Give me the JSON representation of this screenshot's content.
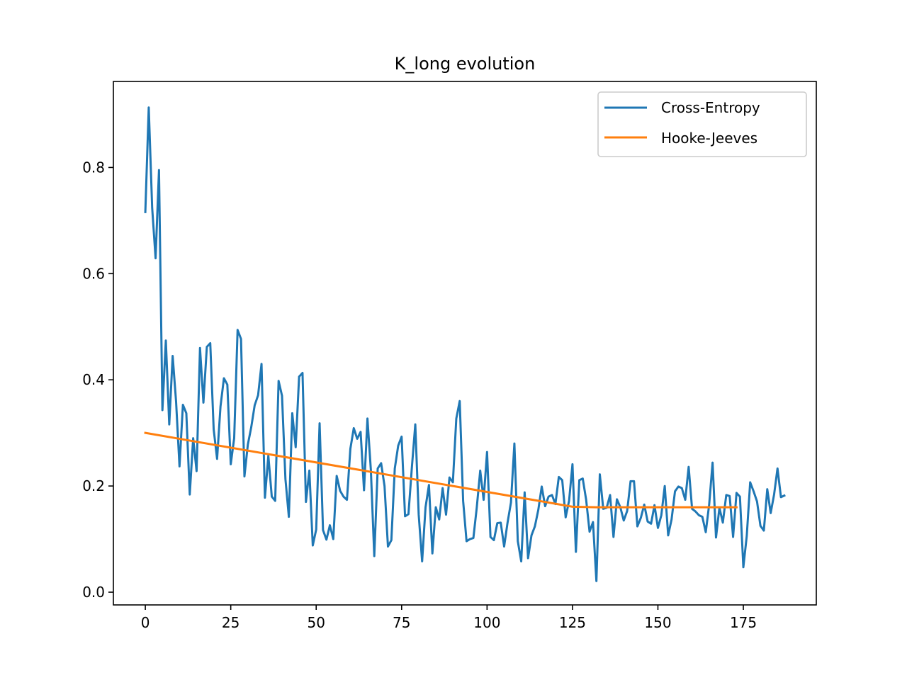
{
  "chart_data": {
    "type": "line",
    "title": "K_long evolution",
    "xlabel": "",
    "ylabel": "",
    "xlim": [
      -9.35,
      196.35
    ],
    "ylim": [
      -0.024,
      0.962
    ],
    "x_ticks": [
      0,
      25,
      50,
      75,
      100,
      125,
      150,
      175
    ],
    "x_tick_labels": [
      "0",
      "25",
      "50",
      "75",
      "100",
      "125",
      "150",
      "175"
    ],
    "y_ticks": [
      0.0,
      0.2,
      0.4,
      0.6,
      0.8
    ],
    "y_tick_labels": [
      "0.0",
      "0.2",
      "0.4",
      "0.6",
      "0.8"
    ],
    "grid": false,
    "legend_position": "top-right",
    "colors": {
      "cross_entropy": "#1f77b4",
      "hooke_jeeves": "#ff7f0e"
    },
    "series": [
      {
        "name": "Cross-Entropy",
        "values": [
          0.716,
          0.913,
          0.724,
          0.629,
          0.795,
          0.343,
          0.474,
          0.316,
          0.445,
          0.359,
          0.237,
          0.353,
          0.337,
          0.184,
          0.29,
          0.228,
          0.46,
          0.357,
          0.462,
          0.469,
          0.307,
          0.251,
          0.35,
          0.403,
          0.391,
          0.241,
          0.29,
          0.494,
          0.477,
          0.218,
          0.278,
          0.311,
          0.352,
          0.371,
          0.43,
          0.178,
          0.257,
          0.18,
          0.172,
          0.398,
          0.37,
          0.213,
          0.142,
          0.337,
          0.273,
          0.406,
          0.413,
          0.17,
          0.229,
          0.088,
          0.118,
          0.318,
          0.117,
          0.099,
          0.126,
          0.1,
          0.219,
          0.191,
          0.18,
          0.174,
          0.27,
          0.309,
          0.289,
          0.302,
          0.192,
          0.327,
          0.23,
          0.068,
          0.233,
          0.243,
          0.2,
          0.086,
          0.098,
          0.233,
          0.276,
          0.293,
          0.143,
          0.147,
          0.235,
          0.316,
          0.146,
          0.058,
          0.16,
          0.202,
          0.073,
          0.16,
          0.137,
          0.196,
          0.146,
          0.216,
          0.207,
          0.327,
          0.36,
          0.172,
          0.096,
          0.1,
          0.102,
          0.16,
          0.229,
          0.174,
          0.264,
          0.104,
          0.098,
          0.13,
          0.131,
          0.086,
          0.131,
          0.169,
          0.28,
          0.096,
          0.058,
          0.188,
          0.064,
          0.107,
          0.124,
          0.155,
          0.199,
          0.162,
          0.18,
          0.183,
          0.166,
          0.217,
          0.211,
          0.141,
          0.172,
          0.241,
          0.076,
          0.211,
          0.214,
          0.174,
          0.114,
          0.132,
          0.021,
          0.222,
          0.157,
          0.159,
          0.183,
          0.104,
          0.175,
          0.16,
          0.135,
          0.153,
          0.209,
          0.209,
          0.124,
          0.14,
          0.165,
          0.133,
          0.129,
          0.164,
          0.121,
          0.145,
          0.2,
          0.107,
          0.137,
          0.19,
          0.199,
          0.196,
          0.174,
          0.236,
          0.157,
          0.152,
          0.145,
          0.142,
          0.113,
          0.165,
          0.244,
          0.103,
          0.159,
          0.131,
          0.183,
          0.181,
          0.104,
          0.187,
          0.18,
          0.047,
          0.106,
          0.207,
          0.19,
          0.171,
          0.125,
          0.116,
          0.194,
          0.149,
          0.184,
          0.233,
          0.179,
          0.182
        ]
      },
      {
        "name": "Hooke-Jeeves",
        "x": [
          0,
          125,
          132,
          160,
          173
        ],
        "values": [
          0.3,
          0.161,
          0.16,
          0.16,
          0.16
        ]
      }
    ]
  }
}
